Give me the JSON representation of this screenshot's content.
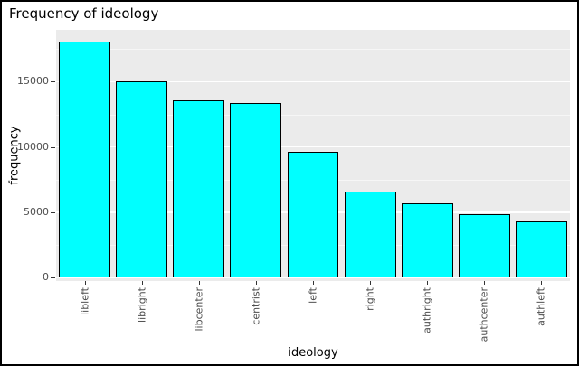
{
  "chart_data": {
    "type": "bar",
    "title": "Frequency of ideology",
    "xlabel": "ideology",
    "ylabel": "frequency",
    "categories": [
      "libleft",
      "libright",
      "libcenter",
      "centrist",
      "left",
      "right",
      "authright",
      "authcenter",
      "authleft"
    ],
    "values": [
      18050,
      15000,
      13550,
      13400,
      9600,
      6600,
      5650,
      4850,
      4300
    ],
    "ylim": [
      0,
      18700
    ],
    "yticks": [
      0,
      5000,
      10000,
      15000
    ],
    "minor_yticks": [
      2500,
      7500,
      12500,
      17500
    ],
    "bar_fill": "#00FFFF",
    "bar_stroke": "#000000",
    "panel_bg": "#EBEBEB",
    "grid_major_color": "#FFFFFF",
    "grid_minor_color": "rgba(255,255,255,0.55)",
    "tick_color": "#333333",
    "axis_text_color": "#4D4D4D",
    "grid": true,
    "legend": "none"
  }
}
